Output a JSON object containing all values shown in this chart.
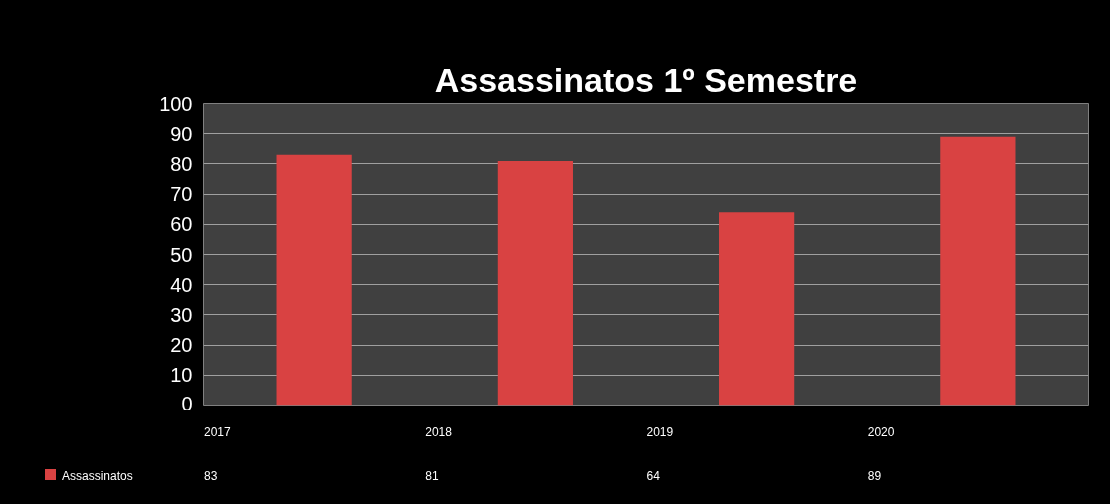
{
  "chart_data": {
    "type": "bar",
    "title": "Assassinatos 1º Semestre",
    "categories": [
      "2017",
      "2018",
      "2019",
      "2020"
    ],
    "series": [
      {
        "name": "Assassinatos",
        "color": "#d94242",
        "values": [
          83,
          81,
          64,
          89
        ]
      }
    ],
    "ylim": [
      0,
      100
    ],
    "yticks": [
      0,
      10,
      20,
      30,
      40,
      50,
      60,
      70,
      80,
      90,
      100
    ],
    "grid": "y",
    "legend": "bottom",
    "data_labels": true
  }
}
